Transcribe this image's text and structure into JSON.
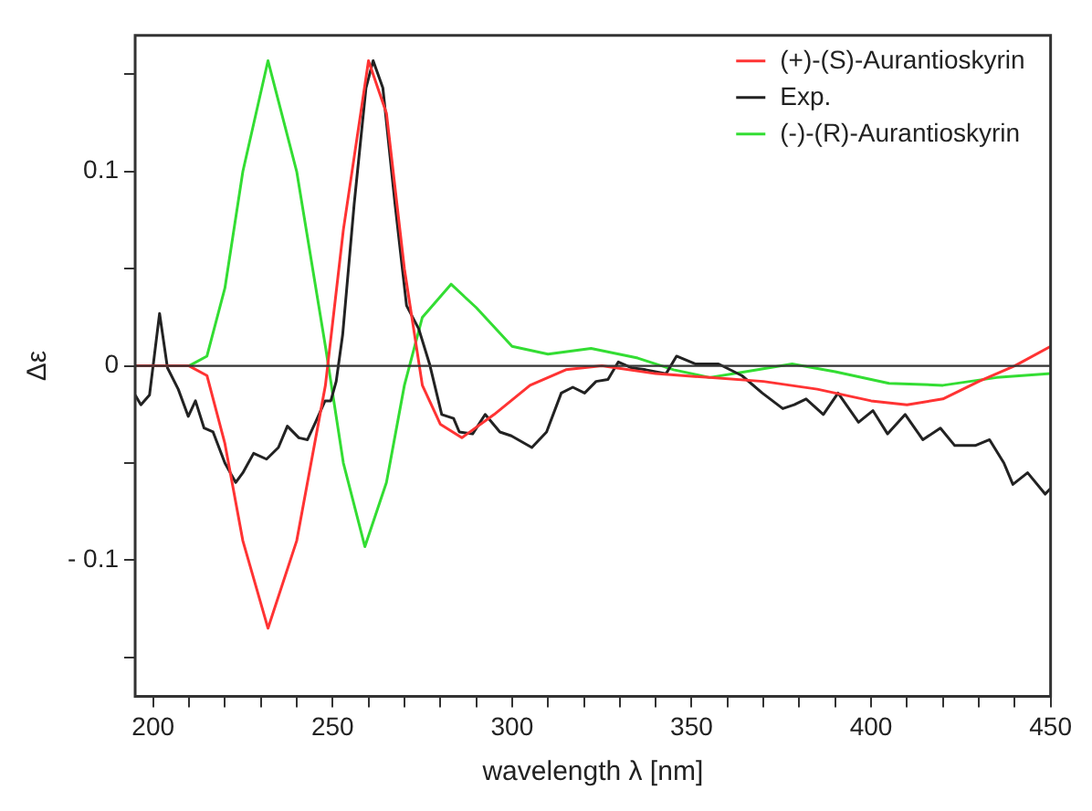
{
  "chart_data": {
    "type": "line",
    "xlabel": "wavelength λ [nm]",
    "ylabel": "Δε",
    "xlim": [
      195,
      450
    ],
    "ylim": [
      -0.17,
      0.17
    ],
    "xticks": [
      200,
      {
        "value": 210,
        "label": null
      },
      {
        "value": 220,
        "label": null
      },
      {
        "value": 230,
        "label": null
      },
      {
        "value": 240,
        "label": null
      },
      250,
      {
        "value": 260,
        "label": null
      },
      {
        "value": 270,
        "label": null
      },
      {
        "value": 280,
        "label": null
      },
      {
        "value": 290,
        "label": null
      },
      300,
      {
        "value": 310,
        "label": null
      },
      {
        "value": 320,
        "label": null
      },
      {
        "value": 330,
        "label": null
      },
      {
        "value": 340,
        "label": null
      },
      350,
      {
        "value": 360,
        "label": null
      },
      {
        "value": 370,
        "label": null
      },
      {
        "value": 380,
        "label": null
      },
      {
        "value": 390,
        "label": null
      },
      400,
      {
        "value": 410,
        "label": null
      },
      {
        "value": 420,
        "label": null
      },
      {
        "value": 430,
        "label": null
      },
      {
        "value": 440,
        "label": null
      },
      450
    ],
    "yticks": [
      {
        "value": -0.15,
        "label": null
      },
      {
        "value": -0.1,
        "label": "- 0.1"
      },
      {
        "value": -0.05,
        "label": null
      },
      0,
      {
        "value": 0.05,
        "label": null
      },
      0.1,
      {
        "value": 0.15,
        "label": null
      }
    ],
    "grid": false,
    "legend": "top right",
    "marker": "none",
    "line_style": "solid",
    "ref_lines": [
      {
        "axis": "y",
        "value": 0,
        "color": "#333333"
      }
    ],
    "series": [
      {
        "name": "(+)-(S)-Aurantioskyrin",
        "color": "#ff3333",
        "x": [
          195,
          210,
          215,
          220,
          225,
          232,
          240,
          248,
          253,
          260,
          265,
          270,
          275,
          280,
          286,
          295,
          305,
          315,
          325,
          340,
          355,
          370,
          385,
          400,
          410,
          420,
          430,
          440,
          450
        ],
        "values": [
          0,
          0,
          -0.005,
          -0.04,
          -0.09,
          -0.135,
          -0.09,
          -0.01,
          0.07,
          0.157,
          0.13,
          0.05,
          -0.01,
          -0.03,
          -0.037,
          -0.025,
          -0.01,
          -0.002,
          0,
          -0.004,
          -0.006,
          -0.008,
          -0.012,
          -0.018,
          -0.02,
          -0.017,
          -0.008,
          0,
          0.01
        ]
      },
      {
        "name": "Exp.",
        "color": "#222222",
        "x": [
          195,
          196.6,
          199,
          201.8,
          204,
          207,
          209.8,
          211.8,
          214.2,
          216.7,
          220,
          223,
          225,
          228,
          231.6,
          234.9,
          237.4,
          240.6,
          243,
          245.5,
          247.9,
          249.5,
          251,
          252.8,
          256,
          259.3,
          261.3,
          264,
          267.4,
          270.6,
          274,
          277,
          280.4,
          283.7,
          285.3,
          289,
          292.5,
          296.6,
          299.8,
          305.5,
          309.6,
          313.7,
          316.9,
          320.2,
          323.4,
          326.7,
          329.6,
          333.2,
          337.2,
          342.9,
          345.8,
          351,
          357.5,
          364,
          369.7,
          375.4,
          378.6,
          381.9,
          386.7,
          390.8,
          396.5,
          400.5,
          404.6,
          409.5,
          414.4,
          419.3,
          423.3,
          429,
          433,
          437,
          439.5,
          443.6,
          448.5,
          450
        ],
        "values": [
          -0.015,
          -0.02,
          -0.015,
          0.027,
          -0.001,
          -0.012,
          -0.026,
          -0.018,
          -0.032,
          -0.034,
          -0.05,
          -0.06,
          -0.055,
          -0.045,
          -0.048,
          -0.042,
          -0.031,
          -0.037,
          -0.038,
          -0.028,
          -0.018,
          -0.018,
          -0.008,
          0.016,
          0.083,
          0.143,
          0.157,
          0.143,
          0.083,
          0.031,
          0.019,
          0.001,
          -0.025,
          -0.027,
          -0.034,
          -0.035,
          -0.025,
          -0.034,
          -0.036,
          -0.042,
          -0.034,
          -0.014,
          -0.011,
          -0.014,
          -0.008,
          -0.007,
          0.002,
          -0.001,
          -0.002,
          -0.004,
          0.005,
          0.001,
          0.001,
          -0.005,
          -0.014,
          -0.022,
          -0.02,
          -0.017,
          -0.025,
          -0.014,
          -0.029,
          -0.023,
          -0.035,
          -0.025,
          -0.038,
          -0.032,
          -0.041,
          -0.041,
          -0.038,
          -0.05,
          -0.061,
          -0.055,
          -0.066,
          -0.063
        ]
      },
      {
        "name": "(-)-(R)-Aurantioskyrin",
        "color": "#33dd33",
        "x": [
          195,
          210,
          215,
          220,
          225,
          232,
          240,
          248,
          253,
          259,
          265,
          270,
          275,
          283,
          290,
          300,
          310,
          322,
          335,
          345,
          355,
          365,
          378,
          390,
          405,
          420,
          435,
          450
        ],
        "values": [
          0,
          0,
          0.005,
          0.04,
          0.1,
          0.157,
          0.1,
          0.01,
          -0.05,
          -0.093,
          -0.06,
          -0.01,
          0.025,
          0.042,
          0.03,
          0.01,
          0.006,
          0.009,
          0.004,
          -0.002,
          -0.006,
          -0.003,
          0.001,
          -0.003,
          -0.009,
          -0.01,
          -0.006,
          -0.004
        ]
      }
    ]
  }
}
